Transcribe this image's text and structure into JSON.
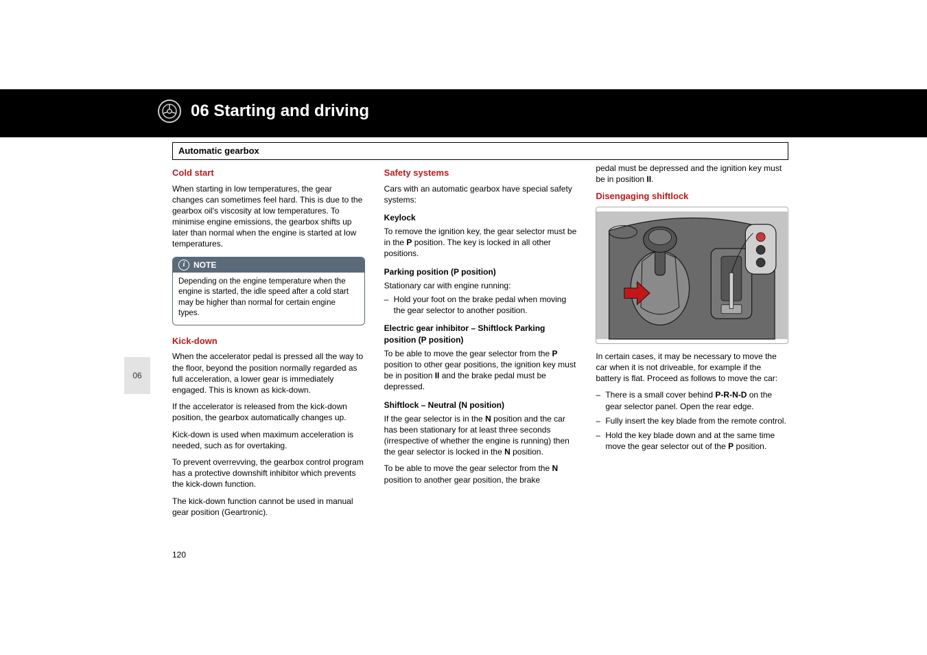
{
  "chapter": "06 Starting and driving",
  "section_bar": "Automatic gearbox",
  "side_tab": "06",
  "page_number": "120",
  "col1": {
    "h1": "Cold start",
    "p1": "When starting in low temperatures, the gear changes can sometimes feel hard. This is due to the gearbox oil's viscosity at low temperatures. To minimise engine emissions, the gearbox shifts up later than normal when the engine is started at low temperatures.",
    "note_label": "NOTE",
    "note_body": "Depending on the engine temperature when the engine is started, the idle speed after a cold start may be higher than normal for certain engine types.",
    "h2": "Kick-down",
    "p2": "When the accelerator pedal is pressed all the way to the floor, beyond the position normally regarded as full acceleration, a lower gear is immediately engaged. This is known as kick-down.",
    "p3": "If the accelerator is released from the kick-down position, the gearbox automatically changes up.",
    "p4": "Kick-down is used when maximum acceleration is needed, such as for overtaking.",
    "p5": "To prevent overrevving, the gearbox control program has a protective downshift inhibitor which prevents the kick-down function.",
    "p6": "The kick-down function cannot be used in manual gear position (Geartronic)."
  },
  "col2": {
    "h1": "Safety systems",
    "p1": "Cars with an automatic gearbox have special safety systems:",
    "h2": "Keylock",
    "p2a": "To remove the ignition key, the gear selector must be in the ",
    "p2b": " position. The key is locked in all other positions.",
    "p2P": "P",
    "h3": "Parking position (P position)",
    "p3": "Stationary car with engine running:",
    "li1": "Hold your foot on the brake pedal when moving the gear selector to another position.",
    "h4": "Electric gear inhibitor – Shiftlock Parking position (P position)",
    "p4a": "To be able to move the gear selector from the ",
    "p4P": "P",
    "p4b": " position to other gear positions, the ignition key must be in position ",
    "p4II": "II",
    "p4c": " and the brake pedal must be depressed.",
    "h5": "Shiftlock – Neutral (N position)",
    "p5a": "If the gear selector is in the ",
    "p5N": "N",
    "p5b": " position and the car has been stationary for at least three seconds (irrespective of whether the engine is running) then the gear selector is locked in the ",
    "p5N2": "N",
    "p5c": " position.",
    "p6a": "To be able to move the gear selector from the ",
    "p6N": "N",
    "p6b": " position to another gear position, the brake"
  },
  "col3": {
    "p0a": "pedal must be depressed and the ignition key must be in position ",
    "p0II": "II",
    "p0b": ".",
    "h1": "Disengaging shiftlock",
    "p1": "In certain cases, it may be necessary to move the car when it is not driveable, for example if the battery is flat. Proceed as follows to move the car:",
    "li1a": "There is a small cover behind ",
    "li1PRND": "P-R-N-D",
    "li1b": " on the gear selector panel. Open the rear edge.",
    "li2": "Fully insert the key blade from the remote control.",
    "li3a": "Hold the key blade down and at the same time move the gear selector out of the ",
    "li3P": "P",
    "li3b": " position."
  },
  "illustration": {
    "bg": "#c4c4c4",
    "console": "#6a6a6a",
    "leather": "#8a8a8a",
    "arrow_fill": "#c01818",
    "outline": "#111",
    "key_body": "#d0d0d0",
    "button_red": "#c83a3a",
    "button_dark": "#3a3a3a",
    "lever_cap": "#555"
  }
}
